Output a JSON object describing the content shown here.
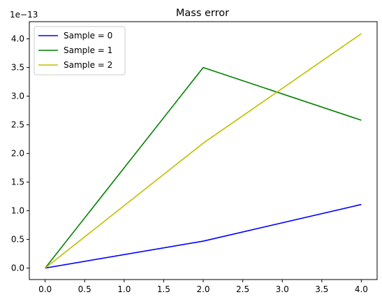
{
  "chart_data": {
    "type": "line",
    "title": "Mass error",
    "xlabel": "",
    "ylabel": "",
    "y_offset_label": "1e−13",
    "xlim": [
      -0.2,
      4.2
    ],
    "ylim": [
      -0.2,
      4.3
    ],
    "x_ticks": [
      0.0,
      0.5,
      1.0,
      1.5,
      2.0,
      2.5,
      3.0,
      3.5,
      4.0
    ],
    "x_tick_labels": [
      "0.0",
      "0.5",
      "1.0",
      "1.5",
      "2.0",
      "2.5",
      "3.0",
      "3.5",
      "4.0"
    ],
    "y_ticks": [
      0.0,
      0.5,
      1.0,
      1.5,
      2.0,
      2.5,
      3.0,
      3.5,
      4.0
    ],
    "y_tick_labels": [
      "0.0",
      "0.5",
      "1.0",
      "1.5",
      "2.0",
      "2.5",
      "3.0",
      "3.5",
      "4.0"
    ],
    "grid": false,
    "legend_position": "top-left",
    "series": [
      {
        "name": "Sample = 0",
        "color": "#0000ff",
        "x": [
          0,
          2,
          4
        ],
        "y": [
          0.0,
          0.47,
          1.11
        ]
      },
      {
        "name": "Sample = 1",
        "color": "#008000",
        "x": [
          0,
          2,
          4
        ],
        "y": [
          0.0,
          3.5,
          2.58
        ]
      },
      {
        "name": "Sample = 2",
        "color": "#bfbf00",
        "x": [
          0,
          2,
          4
        ],
        "y": [
          0.0,
          2.18,
          4.09
        ]
      }
    ]
  }
}
